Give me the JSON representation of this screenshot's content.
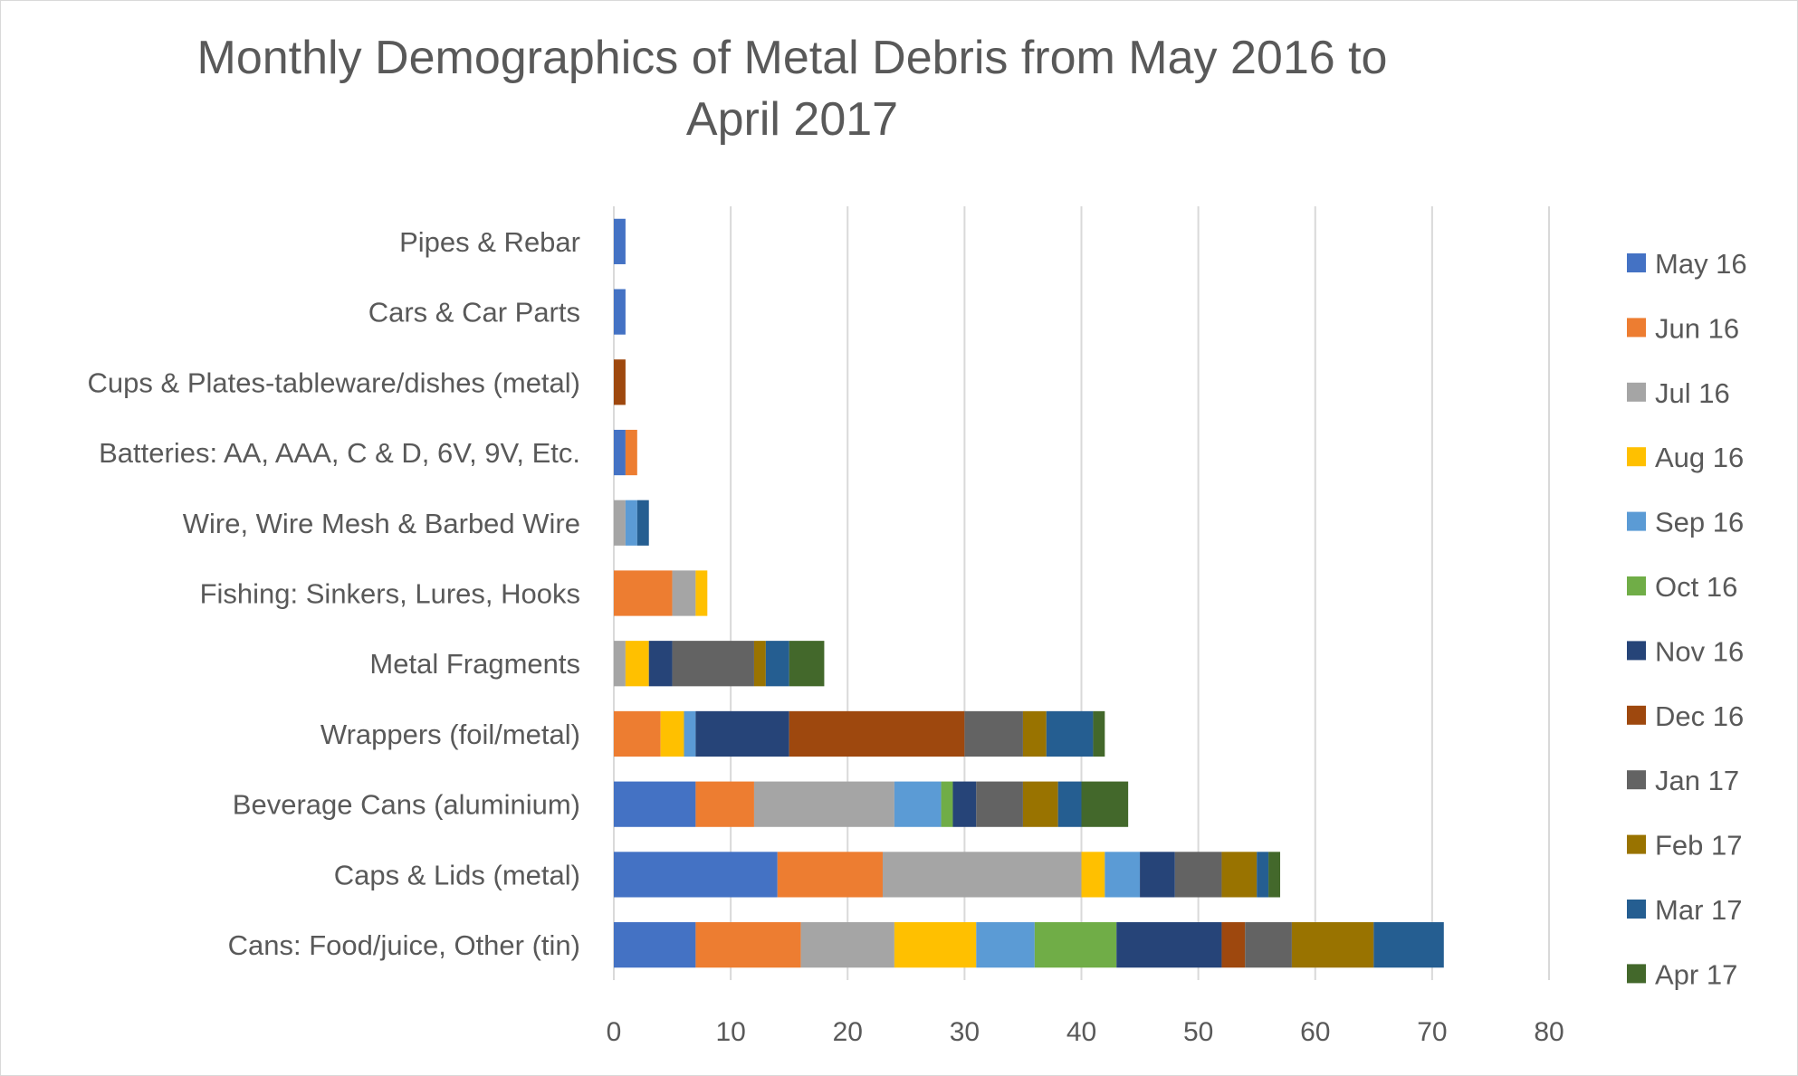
{
  "chart_data": {
    "type": "bar",
    "orientation": "horizontal",
    "stacked": true,
    "title": "Monthly Demographics of Metal Debris from May 2016 to April 2017",
    "xlabel": "",
    "ylabel": "",
    "xlim": [
      0,
      80
    ],
    "x_ticks": [
      0,
      10,
      20,
      30,
      40,
      50,
      60,
      70,
      80
    ],
    "grid": true,
    "legend_position": "right",
    "categories": [
      "Pipes & Rebar",
      "Cars & Car Parts",
      "Cups & Plates-tableware/dishes (metal)",
      "Batteries: AA, AAA, C & D, 6V, 9V, Etc.",
      "Wire, Wire Mesh & Barbed Wire",
      "Fishing: Sinkers, Lures, Hooks",
      "Metal Fragments",
      "Wrappers (foil/metal)",
      "Beverage Cans (aluminium)",
      "Caps & Lids (metal)",
      "Cans: Food/juice, Other (tin)"
    ],
    "series": [
      {
        "name": "May 16",
        "color": "#4472C4",
        "values": [
          1,
          1,
          0,
          1,
          0,
          0,
          0,
          0,
          7,
          14,
          7
        ]
      },
      {
        "name": "Jun 16",
        "color": "#ED7D31",
        "values": [
          0,
          0,
          0,
          1,
          0,
          5,
          0,
          4,
          5,
          9,
          9
        ]
      },
      {
        "name": "Jul 16",
        "color": "#A5A5A5",
        "values": [
          0,
          0,
          0,
          0,
          1,
          2,
          1,
          0,
          12,
          17,
          8
        ]
      },
      {
        "name": "Aug 16",
        "color": "#FFC000",
        "values": [
          0,
          0,
          0,
          0,
          0,
          1,
          2,
          2,
          0,
          2,
          7
        ]
      },
      {
        "name": "Sep 16",
        "color": "#5B9BD5",
        "values": [
          0,
          0,
          0,
          0,
          1,
          0,
          0,
          1,
          4,
          3,
          5
        ]
      },
      {
        "name": "Oct 16",
        "color": "#70AD47",
        "values": [
          0,
          0,
          0,
          0,
          0,
          0,
          0,
          0,
          1,
          0,
          7
        ]
      },
      {
        "name": "Nov 16",
        "color": "#264478",
        "values": [
          0,
          0,
          0,
          0,
          0,
          0,
          2,
          8,
          2,
          3,
          9
        ]
      },
      {
        "name": "Dec 16",
        "color": "#9E480E",
        "values": [
          0,
          0,
          1,
          0,
          0,
          0,
          0,
          15,
          0,
          0,
          2
        ]
      },
      {
        "name": "Jan 17",
        "color": "#636363",
        "values": [
          0,
          0,
          0,
          0,
          0,
          0,
          7,
          5,
          4,
          4,
          4
        ]
      },
      {
        "name": "Feb 17",
        "color": "#997300",
        "values": [
          0,
          0,
          0,
          0,
          0,
          0,
          1,
          2,
          3,
          3,
          7
        ]
      },
      {
        "name": "Mar 17",
        "color": "#255E91",
        "values": [
          0,
          0,
          0,
          0,
          1,
          0,
          2,
          4,
          2,
          1,
          6
        ]
      },
      {
        "name": "Apr 17",
        "color": "#43682B",
        "values": [
          0,
          0,
          0,
          0,
          0,
          0,
          3,
          1,
          4,
          1,
          0
        ]
      }
    ]
  }
}
